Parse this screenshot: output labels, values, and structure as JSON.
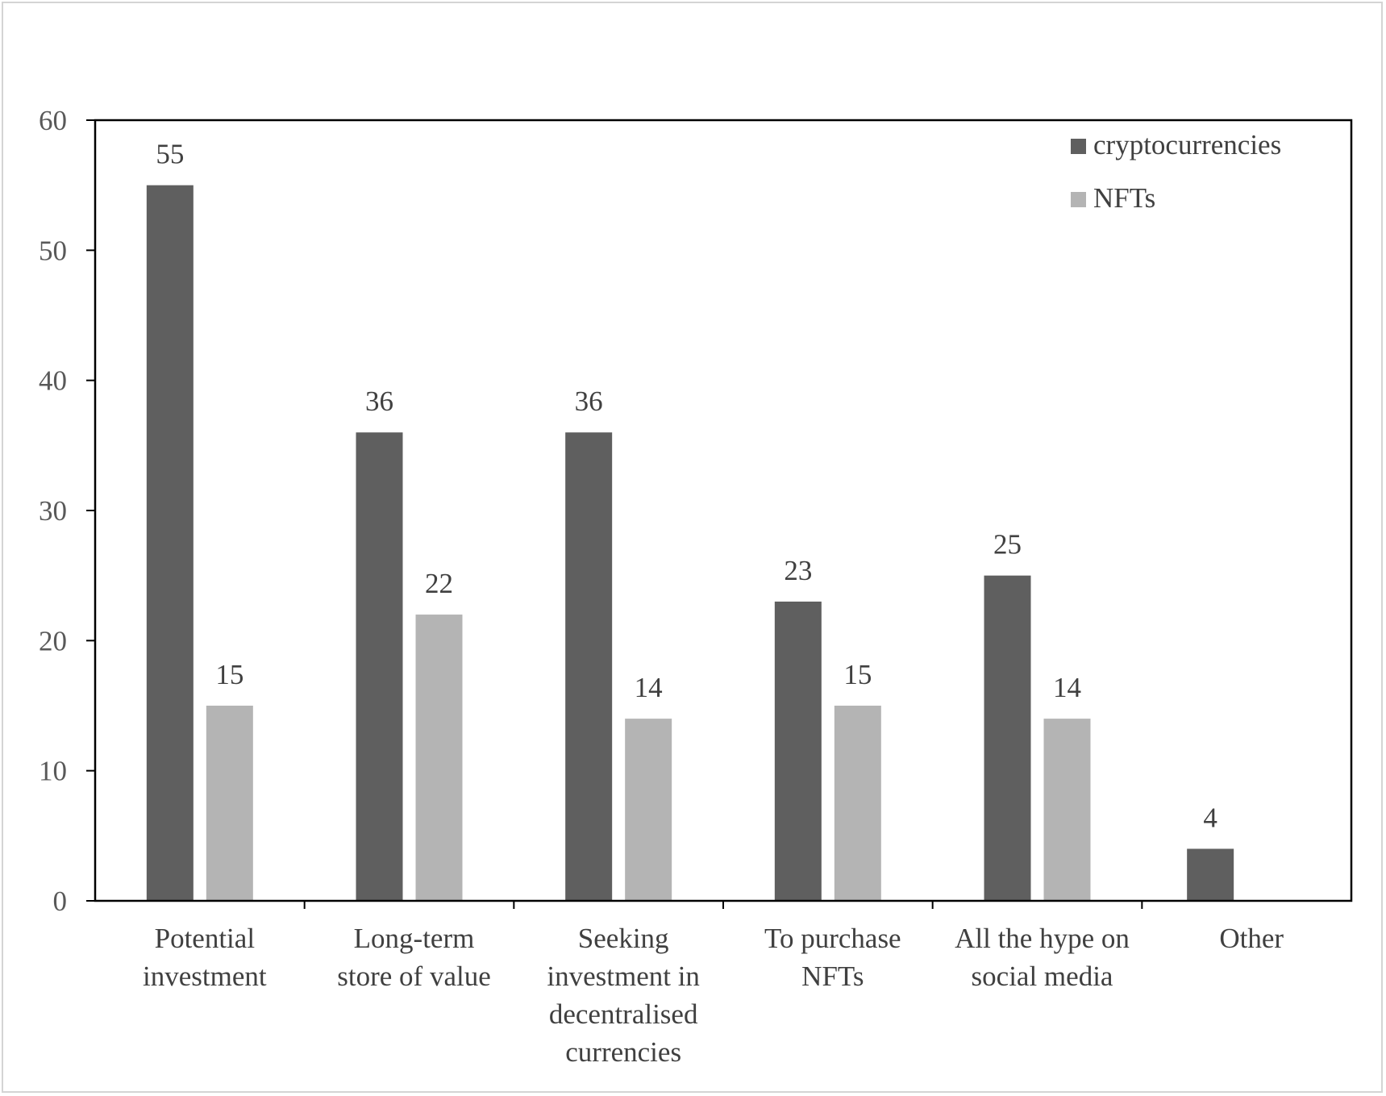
{
  "chart_data": {
    "type": "bar",
    "title": "",
    "xlabel": "",
    "ylabel": "",
    "ylim": [
      0,
      60
    ],
    "yticks": [
      0,
      10,
      20,
      30,
      40,
      50,
      60
    ],
    "grid": false,
    "legend_position": "top-right",
    "categories": [
      [
        "Potential",
        "investment"
      ],
      [
        "Long-term",
        "store of value"
      ],
      [
        "Seeking",
        "investment in",
        "decentralised",
        "currencies"
      ],
      [
        "To purchase",
        "NFTs"
      ],
      [
        "All the hype on",
        "social media"
      ],
      [
        "Other"
      ]
    ],
    "series": [
      {
        "name": "cryptocurrencies",
        "color": "#5f5f5f",
        "values": [
          55,
          36,
          36,
          23,
          25,
          4
        ]
      },
      {
        "name": "NFTs",
        "color": "#b4b4b4",
        "values": [
          15,
          22,
          14,
          15,
          14,
          null
        ]
      }
    ]
  }
}
